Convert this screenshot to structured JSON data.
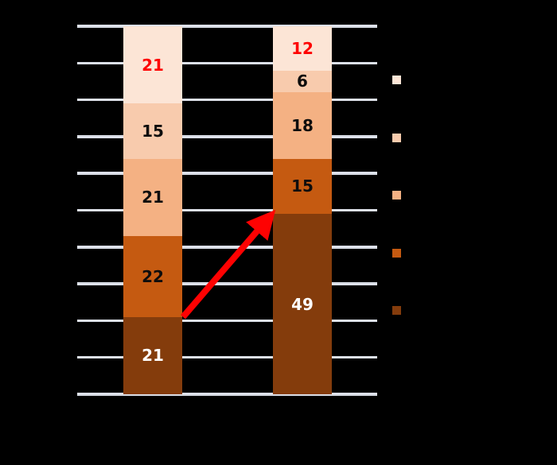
{
  "background_color": "#000000",
  "chart_data": {
    "type": "bar",
    "subtype": "stacked-column",
    "title": "",
    "xlabel": "",
    "ylabel": "",
    "ylim": [
      0,
      100
    ],
    "stack_order": "bottom-to-top",
    "gridlines": {
      "visible": true,
      "count": 11,
      "color": "#dce0e9"
    },
    "categories": [
      "",
      ""
    ],
    "series": [
      {
        "name": "segment-darkest",
        "color": "#843c0c",
        "values": [
          21,
          49
        ],
        "label_colors": [
          "#ffffff",
          "#ffffff"
        ]
      },
      {
        "name": "segment-dark",
        "color": "#c55a11",
        "values": [
          22,
          15
        ],
        "label_colors": [
          "#0d0d0d",
          "#0d0d0d"
        ]
      },
      {
        "name": "segment-medium",
        "color": "#f4b183",
        "values": [
          21,
          18
        ],
        "label_colors": [
          "#0d0d0d",
          "#0d0d0d"
        ]
      },
      {
        "name": "segment-light",
        "color": "#f8cbad",
        "values": [
          15,
          6
        ],
        "label_colors": [
          "#0d0d0d",
          "#0d0d0d"
        ]
      },
      {
        "name": "segment-lightest",
        "color": "#fce5d6",
        "values": [
          21,
          12
        ],
        "label_colors": [
          "#fe0202",
          "#fe0202"
        ]
      }
    ],
    "legend": {
      "position": "right",
      "labels_visible": false,
      "swatch_colors": [
        "#fce5d6",
        "#f8cbad",
        "#f4b183",
        "#c55a11",
        "#843c0c"
      ]
    },
    "annotation": {
      "type": "arrow",
      "color": "#fe0202",
      "stroke_width": 8,
      "from": {
        "category_index": 0,
        "value": 21,
        "side": "right"
      },
      "to": {
        "category_index": 1,
        "value": 49,
        "side": "left"
      }
    }
  }
}
